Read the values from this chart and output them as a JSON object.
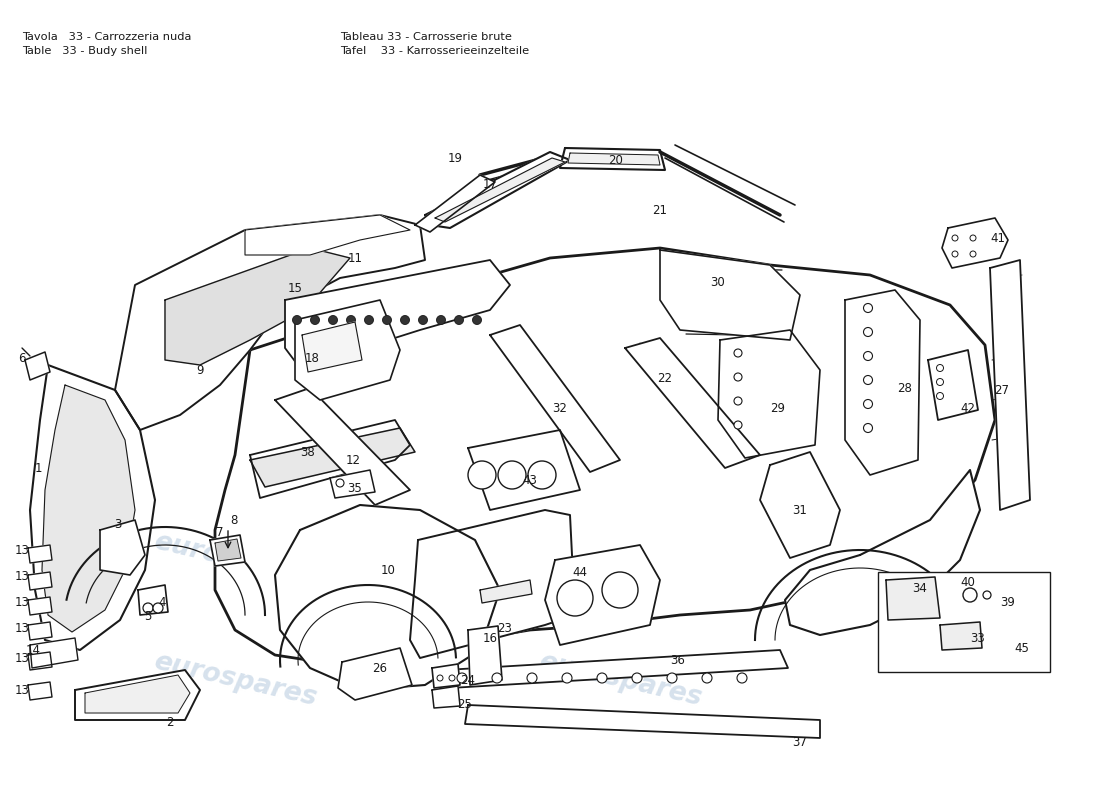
{
  "background_color": "#ffffff",
  "line_color": "#1a1a1a",
  "watermark_color": "#c5d5e5",
  "header": [
    [
      "Tavola",
      "33",
      "Carrozzeria nuda",
      "Tableau",
      "33",
      "Carrosserie brute"
    ],
    [
      "Table",
      "33",
      "Budy shell",
      "Tafel",
      "33",
      "Karrosserieeinzelteile"
    ]
  ],
  "figsize": [
    11.0,
    8.0
  ],
  "dpi": 100
}
